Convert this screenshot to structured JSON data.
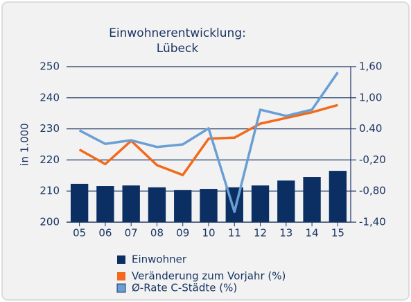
{
  "chart_data": {
    "type": "bar",
    "title": "Einwohnerentwicklung:",
    "subtitle": "Lübeck",
    "ylabel": "in 1.000",
    "categories": [
      "05",
      "06",
      "07",
      "08",
      "09",
      "10",
      "11",
      "12",
      "13",
      "14",
      "15"
    ],
    "ylim": [
      200,
      250
    ],
    "yticks": [
      200,
      210,
      220,
      230,
      240,
      250
    ],
    "y2lim": [
      -1.4,
      1.6
    ],
    "y2ticks": [
      {
        "value": -1.4,
        "label": "-1,40"
      },
      {
        "value": -0.8,
        "label": "-0,80"
      },
      {
        "value": -0.2,
        "label": "-0,20"
      },
      {
        "value": 0.4,
        "label": "0.40"
      },
      {
        "value": 1.0,
        "label": "1,00"
      },
      {
        "value": 1.6,
        "label": "1,60"
      }
    ],
    "grid": true,
    "series": [
      {
        "name": "Einwohner",
        "type": "bar",
        "color": "#0b2f62",
        "values": [
          212.3,
          211.6,
          211.8,
          211.2,
          210.3,
          210.7,
          211.2,
          211.8,
          213.4,
          214.5,
          216.5
        ]
      },
      {
        "name": "Veränderung zum Vorjahr (%)",
        "type": "line",
        "axis": "y2",
        "color": "#f26a1b",
        "values": [
          0.0,
          -0.28,
          0.17,
          -0.3,
          -0.49,
          0.21,
          0.23,
          0.5,
          0.61,
          0.72,
          0.86
        ]
      },
      {
        "name": "Ø-Rate  C-Städte (%)",
        "type": "line",
        "axis": "y2",
        "color": "#6a9fd4",
        "values": [
          0.37,
          0.11,
          0.18,
          0.05,
          0.1,
          0.41,
          -1.2,
          0.77,
          0.65,
          0.77,
          1.49
        ]
      }
    ]
  }
}
